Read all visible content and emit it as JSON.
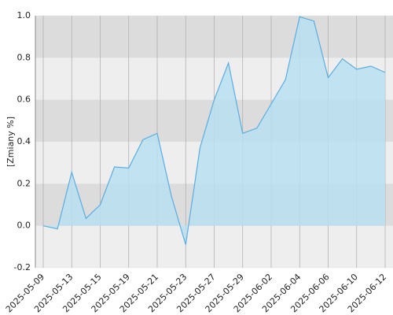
{
  "chart_data": {
    "type": "area",
    "y_label": "[Zmiany %]",
    "categories": [
      "2025-05-09",
      null,
      "2025-05-13",
      null,
      "2025-05-15",
      null,
      "2025-05-19",
      null,
      "2025-05-21",
      null,
      "2025-05-23",
      null,
      "2025-05-27",
      null,
      "2025-05-29",
      null,
      "2025-06-02",
      null,
      "2025-06-04",
      null,
      "2025-06-06",
      null,
      "2025-06-10",
      null,
      "2025-06-12"
    ],
    "values": [
      0.0,
      -0.015,
      0.255,
      0.035,
      0.1,
      0.28,
      0.275,
      0.41,
      0.44,
      0.14,
      -0.09,
      0.37,
      0.6,
      0.775,
      0.44,
      0.465,
      0.58,
      0.695,
      0.995,
      0.975,
      0.705,
      0.795,
      0.745,
      0.76,
      0.73
    ],
    "color": "#5aade0",
    "fill_color": "#b9dff0",
    "ylim": [
      -0.2,
      1.0
    ],
    "yticks": [
      -0.2,
      {
        "value": 0,
        "label": "0.0"
      },
      0.2,
      0.4,
      0.6,
      0.8,
      {
        "value": 1,
        "label": "1.0"
      }
    ],
    "grid": true
  }
}
